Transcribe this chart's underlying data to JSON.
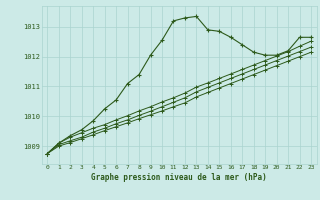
{
  "background_color": "#cceae7",
  "grid_color": "#aad4d0",
  "line_color": "#2d5a1b",
  "title": "Graphe pression niveau de la mer (hPa)",
  "xlim": [
    -0.5,
    23.5
  ],
  "ylim": [
    1008.4,
    1013.7
  ],
  "yticks": [
    1009,
    1010,
    1011,
    1012,
    1013
  ],
  "xticks": [
    0,
    1,
    2,
    3,
    4,
    5,
    6,
    7,
    8,
    9,
    10,
    11,
    12,
    13,
    14,
    15,
    16,
    17,
    18,
    19,
    20,
    21,
    22,
    23
  ],
  "series1_x": [
    0,
    1,
    2,
    3,
    4,
    5,
    6,
    7,
    8,
    9,
    10,
    11,
    12,
    13,
    14,
    15,
    16,
    17,
    18,
    19,
    20,
    21,
    22,
    23
  ],
  "series1_y": [
    1008.75,
    1009.1,
    1009.35,
    1009.55,
    1009.85,
    1010.25,
    1010.55,
    1011.1,
    1011.4,
    1012.05,
    1012.55,
    1013.2,
    1013.3,
    1013.35,
    1012.9,
    1012.85,
    1012.65,
    1012.4,
    1012.15,
    1012.05,
    1012.05,
    1012.2,
    1012.65,
    1012.65
  ],
  "series2_x": [
    0,
    1,
    2,
    3,
    4,
    5,
    6,
    7,
    8,
    9,
    10,
    11,
    12,
    13,
    14,
    15,
    16,
    17,
    18,
    19,
    20,
    21,
    22,
    23
  ],
  "series2_y": [
    1008.75,
    1009.1,
    1009.3,
    1009.45,
    1009.6,
    1009.72,
    1009.88,
    1010.02,
    1010.18,
    1010.32,
    1010.48,
    1010.62,
    1010.78,
    1010.98,
    1011.12,
    1011.27,
    1011.42,
    1011.57,
    1011.72,
    1011.87,
    1012.02,
    1012.17,
    1012.35,
    1012.52
  ],
  "series3_x": [
    0,
    1,
    2,
    3,
    4,
    5,
    6,
    7,
    8,
    9,
    10,
    11,
    12,
    13,
    14,
    15,
    16,
    17,
    18,
    19,
    20,
    21,
    22,
    23
  ],
  "series3_y": [
    1008.75,
    1009.05,
    1009.18,
    1009.3,
    1009.47,
    1009.6,
    1009.75,
    1009.88,
    1010.03,
    1010.17,
    1010.32,
    1010.47,
    1010.62,
    1010.82,
    1010.97,
    1011.12,
    1011.27,
    1011.42,
    1011.57,
    1011.72,
    1011.87,
    1012.02,
    1012.17,
    1012.32
  ],
  "series4_x": [
    0,
    1,
    2,
    3,
    4,
    5,
    6,
    7,
    8,
    9,
    10,
    11,
    12,
    13,
    14,
    15,
    16,
    17,
    18,
    19,
    20,
    21,
    22,
    23
  ],
  "series4_y": [
    1008.75,
    1009.0,
    1009.12,
    1009.25,
    1009.38,
    1009.52,
    1009.65,
    1009.78,
    1009.92,
    1010.05,
    1010.18,
    1010.32,
    1010.45,
    1010.65,
    1010.8,
    1010.95,
    1011.1,
    1011.25,
    1011.4,
    1011.55,
    1011.7,
    1011.85,
    1012.0,
    1012.15
  ]
}
